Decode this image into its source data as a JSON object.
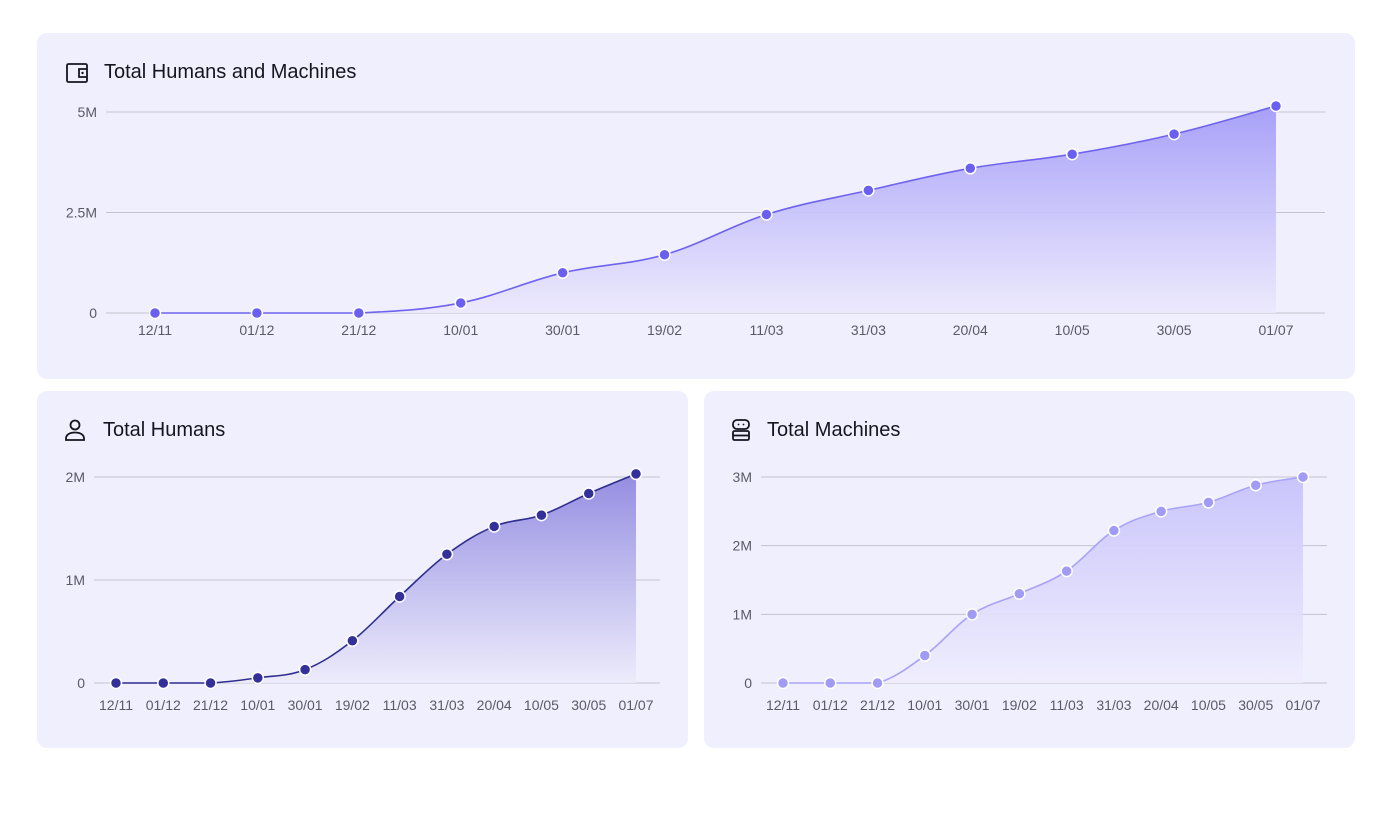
{
  "cards": {
    "total": {
      "title": "Total Humans and Machines",
      "icon": "wallet-icon"
    },
    "humans": {
      "title": "Total Humans",
      "icon": "user-icon"
    },
    "machines": {
      "title": "Total Machines",
      "icon": "robot-icon"
    }
  },
  "chart_data": [
    {
      "id": "total",
      "type": "area",
      "title": "Total Humans and Machines",
      "x": [
        "12/11",
        "01/12",
        "21/12",
        "10/01",
        "30/01",
        "19/02",
        "11/03",
        "31/03",
        "20/04",
        "10/05",
        "30/05",
        "01/07"
      ],
      "values": [
        0,
        0,
        0,
        0.25,
        1.0,
        1.45,
        2.45,
        3.05,
        3.6,
        3.95,
        4.45,
        5.15
      ],
      "y_unit": "M",
      "yticks": [
        0,
        2.5,
        5
      ],
      "ytick_labels": [
        "0",
        "2.5M",
        "5M"
      ],
      "ylim": [
        0,
        5
      ],
      "grid": true,
      "color": "#6f63ee"
    },
    {
      "id": "humans",
      "type": "area",
      "title": "Total Humans",
      "x": [
        "12/11",
        "01/12",
        "21/12",
        "10/01",
        "30/01",
        "19/02",
        "11/03",
        "31/03",
        "20/04",
        "10/05",
        "30/05",
        "01/07"
      ],
      "values": [
        0,
        0,
        0,
        0.05,
        0.13,
        0.41,
        0.84,
        1.25,
        1.52,
        1.63,
        1.84,
        2.03
      ],
      "y_unit": "M",
      "yticks": [
        0,
        1,
        2
      ],
      "ytick_labels": [
        "0",
        "1M",
        "2M"
      ],
      "ylim": [
        0,
        2
      ],
      "grid": true,
      "color": "#2f2d8e"
    },
    {
      "id": "machines",
      "type": "area",
      "title": "Total Machines",
      "x": [
        "12/11",
        "01/12",
        "21/12",
        "10/01",
        "30/01",
        "19/02",
        "11/03",
        "31/03",
        "20/04",
        "10/05",
        "30/05",
        "01/07"
      ],
      "values": [
        0,
        0,
        0,
        0.4,
        1.0,
        1.3,
        1.63,
        2.22,
        2.5,
        2.63,
        2.88,
        3.0
      ],
      "y_unit": "M",
      "yticks": [
        0,
        1,
        2,
        3
      ],
      "ytick_labels": [
        "0",
        "1M",
        "2M",
        "3M"
      ],
      "ylim": [
        0,
        3
      ],
      "grid": true,
      "color": "#a9a3f5"
    }
  ]
}
